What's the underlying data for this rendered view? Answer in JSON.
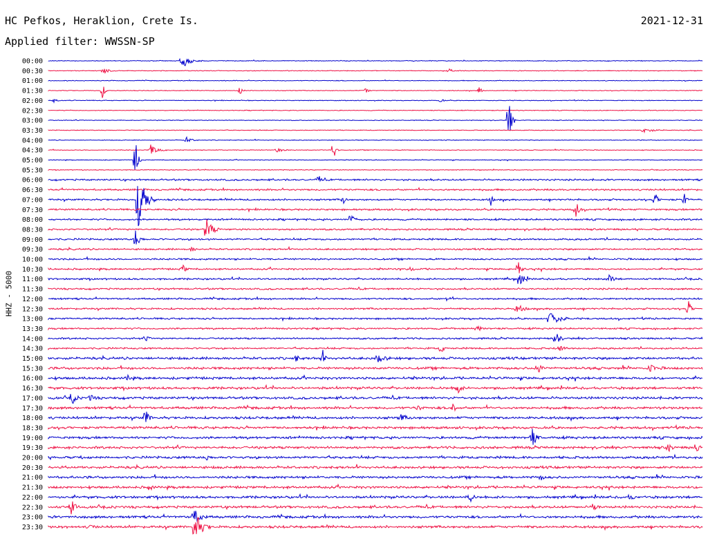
{
  "header": {
    "station": "HC Pefkos, Heraklion, Crete Is.",
    "filter": "Applied filter: WWSSN-SP",
    "date": "2021-12-31"
  },
  "chart_data": {
    "type": "line",
    "title": "HC Pefkos, Heraklion, Crete Is.",
    "ylabel": "HHZ - 5000",
    "time_labels": [
      "00:00",
      "00:30",
      "01:00",
      "01:30",
      "02:00",
      "02:30",
      "03:00",
      "03:30",
      "04:00",
      "04:30",
      "05:00",
      "05:30",
      "06:00",
      "06:30",
      "07:00",
      "07:30",
      "08:00",
      "08:30",
      "09:00",
      "09:30",
      "10:00",
      "10:30",
      "11:00",
      "11:30",
      "12:00",
      "12:30",
      "13:00",
      "13:30",
      "14:00",
      "14:30",
      "15:00",
      "15:30",
      "16:00",
      "16:30",
      "17:00",
      "17:30",
      "18:00",
      "18:30",
      "19:00",
      "19:30",
      "20:00",
      "20:30",
      "21:00",
      "21:30",
      "22:00",
      "22:30",
      "23:00",
      "23:30"
    ],
    "colors": [
      "#0000cc",
      "#ee1144"
    ],
    "grid": false,
    "legend": "none"
  }
}
